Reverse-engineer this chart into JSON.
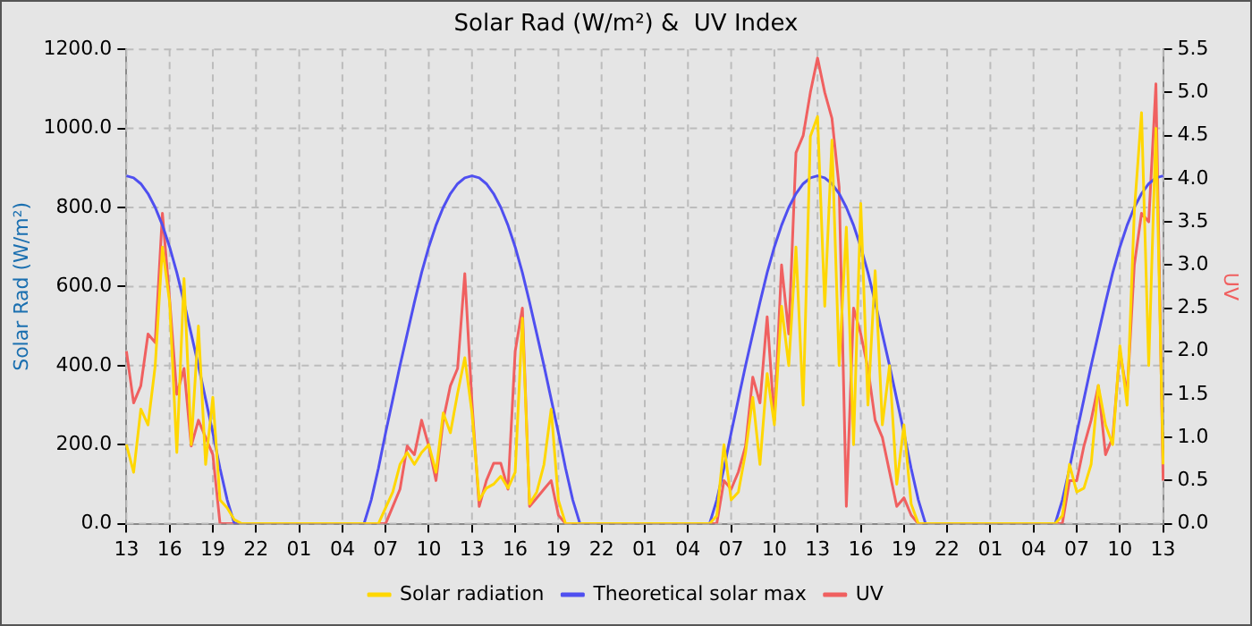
{
  "chart_data": {
    "type": "line",
    "title": "Solar Rad (W/m²) &  UV Index",
    "ylabel": "Solar Rad (W/m²)",
    "y2label": "UV",
    "categories": [
      "13",
      null,
      null,
      null,
      null,
      null,
      "16",
      null,
      null,
      null,
      null,
      null,
      "19",
      null,
      null,
      null,
      null,
      null,
      "22",
      null,
      null,
      null,
      null,
      null,
      "01",
      null,
      null,
      null,
      null,
      null,
      "04",
      null,
      null,
      null,
      null,
      null,
      "07",
      null,
      null,
      null,
      null,
      null,
      "10",
      null,
      null,
      null,
      null,
      null,
      "13",
      null,
      null,
      null,
      null,
      null,
      "16",
      null,
      null,
      null,
      null,
      null,
      "19",
      null,
      null,
      null,
      null,
      null,
      "22",
      null,
      null,
      null,
      null,
      null,
      "01",
      null,
      null,
      null,
      null,
      null,
      "04",
      null,
      null,
      null,
      null,
      null,
      "07",
      null,
      null,
      null,
      null,
      null,
      "10",
      null,
      null,
      null,
      null,
      null,
      "13",
      null,
      null,
      null,
      null,
      null,
      "16",
      null,
      null,
      null,
      null,
      null,
      "19",
      null,
      null,
      null,
      null,
      null,
      "22",
      null,
      null,
      null,
      null,
      null,
      "01",
      null,
      null,
      null,
      null,
      null,
      "04",
      null,
      null,
      null,
      null,
      null,
      "07",
      null,
      null,
      null,
      null,
      null,
      "10",
      null,
      null,
      null,
      null,
      null,
      "13"
    ],
    "ylim": [
      0,
      1200
    ],
    "yticks": [
      {
        "value": 0,
        "label": "0.0"
      },
      {
        "value": 200,
        "label": "200.0"
      },
      {
        "value": 400,
        "label": "400.0"
      },
      {
        "value": 600,
        "label": "600.0"
      },
      {
        "value": 800,
        "label": "800.0"
      },
      {
        "value": 1000,
        "label": "1000.0"
      },
      {
        "value": 1200,
        "label": "1200.0"
      }
    ],
    "y2lim": [
      0,
      5.5
    ],
    "y2ticks": [
      {
        "value": 0,
        "label": "0.0"
      },
      0.5,
      {
        "value": 1,
        "label": "1.0"
      },
      1.5,
      {
        "value": 2,
        "label": "2.0"
      },
      2.5,
      {
        "value": 3,
        "label": "3.0"
      },
      3.5,
      {
        "value": 4,
        "label": "4.0"
      },
      4.5,
      {
        "value": 5,
        "label": "5.0"
      },
      5.5
    ],
    "grid": true,
    "legend": "bottom",
    "marker": "none",
    "line_style": "solid",
    "series": [
      {
        "name": "Solar radiation",
        "color": "#ffd700",
        "values": [
          200,
          130,
          290,
          250,
          400,
          700,
          560,
          180,
          620,
          200,
          500,
          150,
          320,
          60,
          40,
          10,
          0,
          0,
          0,
          0,
          0,
          0,
          0,
          0,
          0,
          0,
          0,
          0,
          0,
          0,
          0,
          0,
          0,
          0,
          0,
          0,
          40,
          80,
          150,
          180,
          150,
          180,
          200,
          130,
          280,
          230,
          330,
          420,
          280,
          60,
          90,
          100,
          120,
          90,
          130,
          520,
          50,
          80,
          150,
          290,
          60,
          0,
          0,
          0,
          0,
          0,
          0,
          0,
          0,
          0,
          0,
          0,
          0,
          0,
          0,
          0,
          0,
          0,
          0,
          0,
          0,
          0,
          20,
          200,
          60,
          80,
          180,
          320,
          150,
          380,
          250,
          550,
          400,
          700,
          300,
          980,
          1030,
          550,
          970,
          400,
          750,
          200,
          810,
          300,
          640,
          250,
          400,
          100,
          250,
          50,
          0,
          0,
          0,
          0,
          0,
          0,
          0,
          0,
          0,
          0,
          0,
          0,
          0,
          0,
          0,
          0,
          0,
          0,
          0,
          0,
          20,
          150,
          80,
          90,
          150,
          350,
          250,
          200,
          450,
          300,
          790,
          1040,
          400,
          1000,
          150
        ]
      },
      {
        "name": "Theoretical solar max",
        "color": "#4f4ff0",
        "values": [
          880,
          875,
          860,
          835,
          800,
          755,
          700,
          635,
          560,
          480,
          400,
          315,
          230,
          140,
          60,
          0,
          0,
          0,
          0,
          0,
          0,
          0,
          0,
          0,
          0,
          0,
          0,
          0,
          0,
          0,
          0,
          0,
          0,
          0,
          60,
          140,
          230,
          315,
          400,
          480,
          560,
          635,
          700,
          755,
          800,
          835,
          860,
          875,
          880,
          875,
          860,
          835,
          800,
          755,
          700,
          635,
          560,
          480,
          400,
          315,
          230,
          140,
          60,
          0,
          0,
          0,
          0,
          0,
          0,
          0,
          0,
          0,
          0,
          0,
          0,
          0,
          0,
          0,
          0,
          0,
          0,
          0,
          60,
          140,
          230,
          315,
          400,
          480,
          560,
          635,
          700,
          755,
          800,
          835,
          860,
          875,
          880,
          875,
          860,
          835,
          800,
          755,
          700,
          635,
          560,
          480,
          400,
          315,
          230,
          140,
          60,
          0,
          0,
          0,
          0,
          0,
          0,
          0,
          0,
          0,
          0,
          0,
          0,
          0,
          0,
          0,
          0,
          0,
          0,
          0,
          60,
          140,
          230,
          315,
          400,
          480,
          560,
          635,
          700,
          755,
          800,
          835,
          860,
          875,
          880
        ]
      },
      {
        "name": "UV",
        "color": "#f06060",
        "axis": "y2",
        "values": [
          2.0,
          1.4,
          1.6,
          2.2,
          2.1,
          3.6,
          2.6,
          1.5,
          1.8,
          0.9,
          1.2,
          1.0,
          0.8,
          0,
          0,
          0,
          0,
          0,
          0,
          0,
          0,
          0,
          0,
          0,
          0,
          0,
          0,
          0,
          0,
          0,
          0,
          0,
          0,
          0,
          0,
          0,
          0,
          0.2,
          0.4,
          0.9,
          0.8,
          1.2,
          0.9,
          0.5,
          1.2,
          1.6,
          1.8,
          2.9,
          1.4,
          0.2,
          0.5,
          0.7,
          0.7,
          0.4,
          2.0,
          2.5,
          0.2,
          0.3,
          0.4,
          0.5,
          0.1,
          0,
          0,
          0,
          0,
          0,
          0,
          0,
          0,
          0,
          0,
          0,
          0,
          0,
          0,
          0,
          0,
          0,
          0,
          0,
          0,
          0,
          0,
          0.5,
          0.4,
          0.6,
          0.9,
          1.7,
          1.4,
          2.4,
          1.2,
          3.0,
          2.2,
          4.3,
          4.5,
          5.0,
          5.4,
          5.0,
          4.7,
          3.9,
          0.2,
          2.5,
          2.2,
          1.8,
          1.2,
          1.0,
          0.6,
          0.2,
          0.3,
          0.1,
          0,
          0,
          0,
          0,
          0,
          0,
          0,
          0,
          0,
          0,
          0,
          0,
          0,
          0,
          0,
          0,
          0,
          0,
          0,
          0,
          0,
          0.5,
          0.5,
          0.9,
          1.2,
          1.6,
          0.8,
          1.0,
          2.0,
          1.5,
          3.0,
          3.6,
          3.5,
          5.1,
          0.5
        ]
      }
    ]
  }
}
